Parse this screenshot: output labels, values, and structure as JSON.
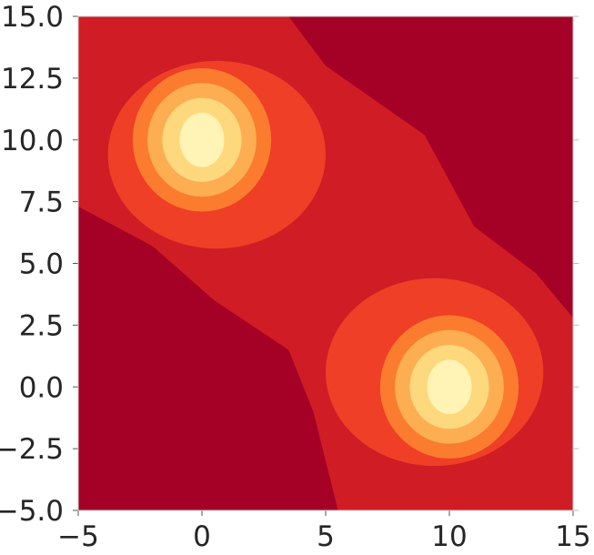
{
  "chart_data": {
    "type": "contourf",
    "x_range": [
      -5,
      15
    ],
    "y_range": [
      -5,
      15
    ],
    "xticks": [
      -5,
      0,
      5,
      10,
      15
    ],
    "xtick_labels": [
      "−5",
      "0",
      "5",
      "10",
      "15"
    ],
    "yticks": [
      -5.0,
      -2.5,
      0.0,
      2.5,
      5.0,
      7.5,
      10.0,
      12.5,
      15.0
    ],
    "ytick_labels": [
      "−5.0",
      "−2.5",
      "0.0",
      "2.5",
      "5.0",
      "7.5",
      "10.0",
      "12.5",
      "15.0"
    ],
    "colormap": "YlOrRd_r",
    "peaks": [
      {
        "x": 0,
        "y": 10
      },
      {
        "x": 10,
        "y": 0
      }
    ],
    "level_colors": [
      "#a50026",
      "#d01c24",
      "#ef3f26",
      "#fb7c2f",
      "#fdae52",
      "#fed87d",
      "#fff4b5"
    ],
    "xlabel": "",
    "ylabel": "",
    "title": "",
    "grid": false,
    "legend": "none"
  }
}
